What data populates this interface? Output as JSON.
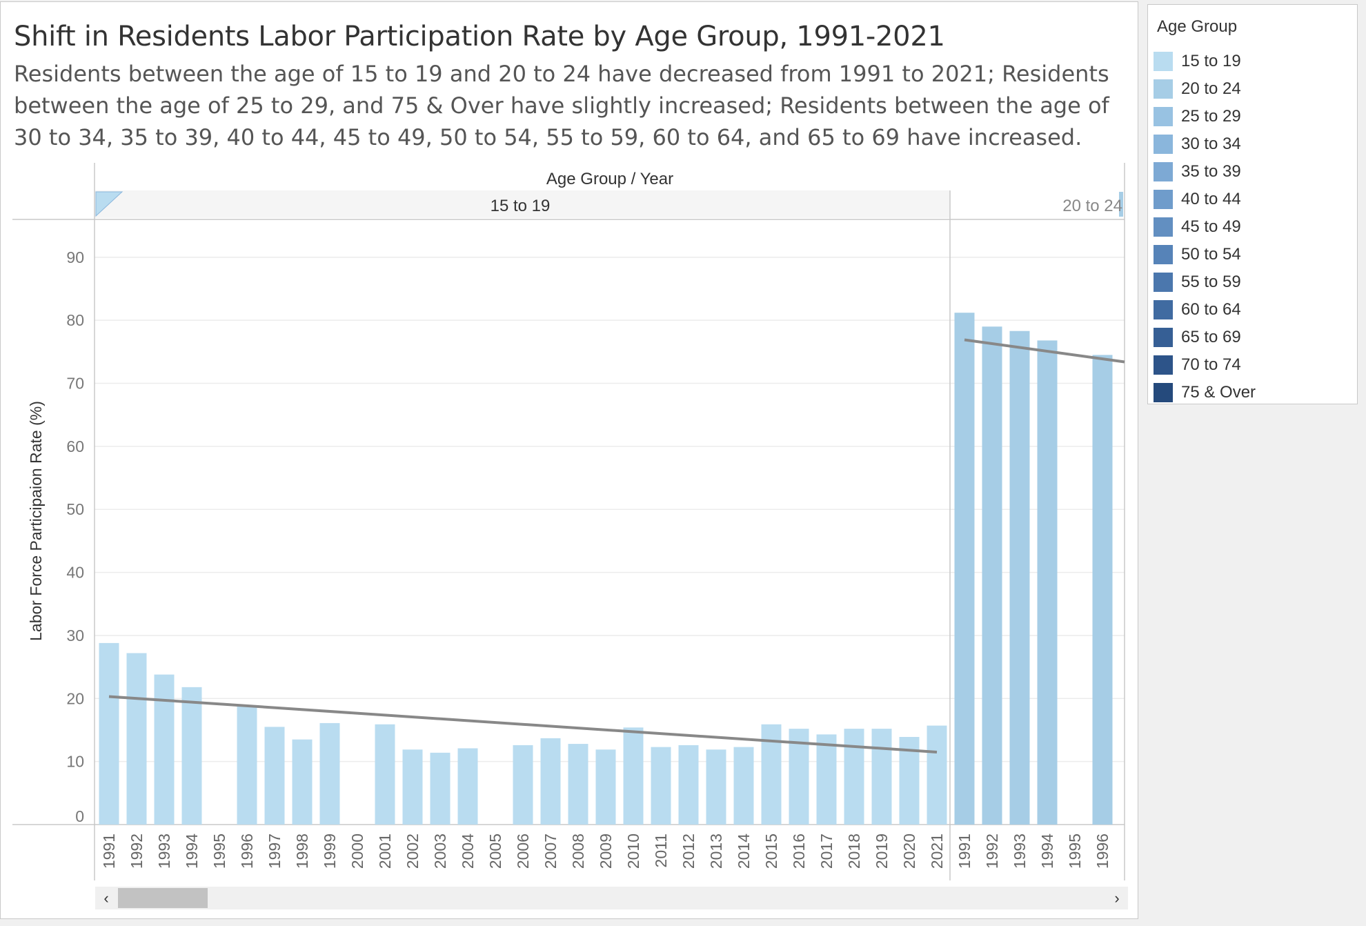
{
  "header": {
    "title": "Shift in Residents Labor Participation Rate by Age Group, 1991-2021",
    "subtitle": "Residents between the age of 15 to 19 and 20 to 24 have decreased from 1991 to 2021; Residents between the age of 25 to 29, and 75 & Over have slightly increased; Residents between the age of 30 to 34, 35 to 39, 40 to 44, 45 to 49, 50 to 54, 55 to 59, 60 to 64, and 65 to 69  have increased."
  },
  "legend": {
    "title": "Age Group",
    "items": [
      {
        "label": "15 to 19",
        "color": "#b9dcf0"
      },
      {
        "label": "20 to 24",
        "color": "#a6cde6"
      },
      {
        "label": "25 to 29",
        "color": "#98c2e2"
      },
      {
        "label": "30 to 34",
        "color": "#8ab6dc"
      },
      {
        "label": "35 to 39",
        "color": "#7da9d4"
      },
      {
        "label": "40 to 44",
        "color": "#6f9ccb"
      },
      {
        "label": "45 to 49",
        "color": "#628fc1"
      },
      {
        "label": "50 to 54",
        "color": "#5683b8"
      },
      {
        "label": "55 to 59",
        "color": "#4b77ad"
      },
      {
        "label": "60 to 64",
        "color": "#406ba1"
      },
      {
        "label": "65 to 69",
        "color": "#365f95"
      },
      {
        "label": "70 to 74",
        "color": "#2d5489"
      },
      {
        "label": "75 & Over",
        "color": "#254a7c"
      }
    ]
  },
  "chart_data": {
    "type": "bar",
    "column_header": "Age Group  /  Year",
    "ylabel": "Labor Force Participaion Rate (%)",
    "ylim": [
      0,
      96
    ],
    "yticks": [
      0,
      10,
      20,
      30,
      40,
      50,
      60,
      70,
      80,
      90
    ],
    "groups": [
      {
        "name": "15 to 19",
        "color": "#b9dcf0",
        "x": [
          "1991",
          "1992",
          "1993",
          "1994",
          "1995",
          "1996",
          "1997",
          "1998",
          "1999",
          "2000",
          "2001",
          "2002",
          "2003",
          "2004",
          "2005",
          "2006",
          "2007",
          "2008",
          "2009",
          "2010",
          "2011",
          "2012",
          "2013",
          "2014",
          "2015",
          "2016",
          "2017",
          "2018",
          "2019",
          "2020",
          "2021"
        ],
        "values": [
          28.8,
          27.2,
          23.8,
          21.8,
          null,
          18.8,
          15.5,
          13.5,
          16.1,
          null,
          15.9,
          11.9,
          11.4,
          12.1,
          null,
          12.6,
          13.7,
          12.8,
          11.9,
          15.4,
          12.3,
          12.6,
          11.9,
          12.3,
          15.9,
          15.2,
          14.3,
          15.2,
          15.2,
          13.9,
          15.7
        ],
        "trend": {
          "start": 20.3,
          "end": 11.5
        }
      },
      {
        "name": "20 to 24",
        "color": "#a6cde6",
        "x": [
          "1991",
          "1992",
          "1993",
          "1994",
          "1995",
          "1996"
        ],
        "values": [
          81.2,
          79.0,
          78.3,
          76.8,
          null,
          74.5
        ],
        "trend": {
          "start": 76.9,
          "end": 73.4
        }
      }
    ]
  },
  "scrollbar": {
    "left_arrow": "‹",
    "right_arrow": "›"
  }
}
